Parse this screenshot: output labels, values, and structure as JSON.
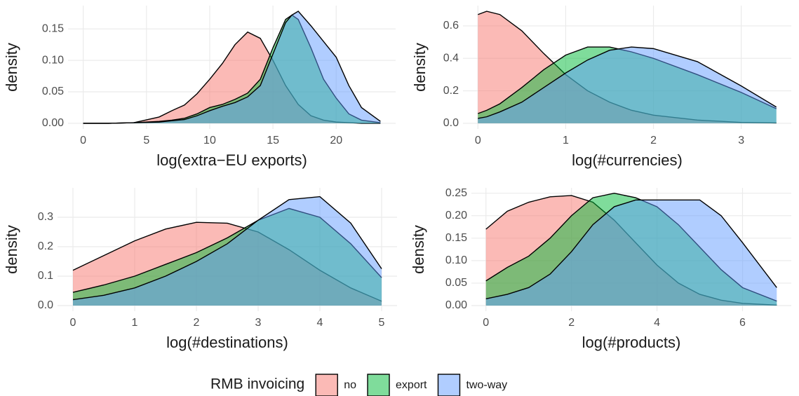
{
  "chart_data": [
    {
      "type": "area",
      "legend_title": "RMB invoicing",
      "xlabel": "log(extra−EU exports)",
      "ylabel": "density",
      "x": [
        0,
        2,
        4,
        6,
        7,
        8,
        9,
        10,
        11,
        12,
        13,
        14,
        15,
        16,
        16.5,
        17,
        18,
        19,
        20,
        21,
        22,
        23.5
      ],
      "series": [
        {
          "name": "no",
          "color": "#F8766D",
          "values": [
            0,
            0,
            0.001,
            0.01,
            0.02,
            0.029,
            0.047,
            0.07,
            0.095,
            0.125,
            0.145,
            0.135,
            0.1,
            0.06,
            0.045,
            0.03,
            0.012,
            0.005,
            0.002,
            0.001,
            0,
            0
          ]
        },
        {
          "name": "export",
          "color": "#00BA38",
          "values": [
            0,
            0,
            0.001,
            0.003,
            0.005,
            0.008,
            0.015,
            0.025,
            0.03,
            0.038,
            0.048,
            0.07,
            0.12,
            0.165,
            0.172,
            0.165,
            0.12,
            0.07,
            0.04,
            0.015,
            0.005,
            0.001
          ]
        },
        {
          "name": "two-way",
          "color": "#619CFF",
          "values": [
            0,
            0,
            0.001,
            0.002,
            0.004,
            0.006,
            0.012,
            0.02,
            0.027,
            0.033,
            0.042,
            0.06,
            0.11,
            0.16,
            0.172,
            0.178,
            0.155,
            0.13,
            0.105,
            0.06,
            0.025,
            0.003
          ]
        }
      ],
      "xlim": [
        -1.2,
        24.7
      ],
      "ylim": [
        -0.009,
        0.187
      ],
      "xticks": [
        0,
        5,
        10,
        15,
        20
      ],
      "yticks": [
        {
          "value": 0,
          "label": "0.00"
        },
        0.05,
        {
          "value": 0.1,
          "label": "0.10"
        },
        0.15
      ],
      "grid": true
    },
    {
      "type": "area",
      "xlabel": "log(#currencies)",
      "ylabel": "density",
      "x": [
        0,
        0.1,
        0.25,
        0.5,
        0.75,
        1,
        1.25,
        1.5,
        1.75,
        2,
        2.5,
        3,
        3.4
      ],
      "series": [
        {
          "name": "no",
          "color": "#F8766D",
          "values": [
            0.67,
            0.69,
            0.67,
            0.57,
            0.43,
            0.3,
            0.2,
            0.13,
            0.08,
            0.05,
            0.02,
            0.005,
            0.002
          ]
        },
        {
          "name": "export",
          "color": "#00BA38",
          "values": [
            0.06,
            0.08,
            0.12,
            0.22,
            0.33,
            0.42,
            0.47,
            0.47,
            0.44,
            0.4,
            0.3,
            0.19,
            0.09
          ]
        },
        {
          "name": "two-way",
          "color": "#619CFF",
          "values": [
            0.03,
            0.04,
            0.07,
            0.13,
            0.22,
            0.31,
            0.39,
            0.45,
            0.47,
            0.46,
            0.38,
            0.23,
            0.1
          ]
        }
      ],
      "xlim": [
        -0.17,
        3.57
      ],
      "ylim": [
        -0.035,
        0.725
      ],
      "xticks": [
        0,
        1,
        2,
        3
      ],
      "yticks": [
        {
          "value": 0,
          "label": "0.0"
        },
        0.2,
        0.4,
        0.6
      ],
      "grid": true
    },
    {
      "type": "area",
      "xlabel": "log(#destinations)",
      "ylabel": "density",
      "x": [
        0,
        0.5,
        1,
        1.5,
        2,
        2.5,
        3,
        3.5,
        4,
        4.5,
        5
      ],
      "series": [
        {
          "name": "no",
          "color": "#F8766D",
          "values": [
            0.12,
            0.17,
            0.22,
            0.26,
            0.283,
            0.28,
            0.25,
            0.19,
            0.12,
            0.06,
            0.015
          ]
        },
        {
          "name": "export",
          "color": "#00BA38",
          "values": [
            0.045,
            0.07,
            0.1,
            0.14,
            0.18,
            0.23,
            0.29,
            0.33,
            0.3,
            0.21,
            0.095
          ]
        },
        {
          "name": "two-way",
          "color": "#619CFF",
          "values": [
            0.02,
            0.035,
            0.06,
            0.1,
            0.15,
            0.21,
            0.29,
            0.36,
            0.37,
            0.28,
            0.125
          ]
        }
      ],
      "xlim": [
        -0.25,
        5.25
      ],
      "ylim": [
        -0.019,
        0.4
      ],
      "xticks": [
        0,
        1,
        2,
        3,
        4,
        5
      ],
      "yticks": [
        {
          "value": 0,
          "label": "0.0"
        },
        0.1,
        0.2,
        0.3
      ],
      "grid": true
    },
    {
      "type": "area",
      "xlabel": "log(#products)",
      "ylabel": "density",
      "x": [
        0,
        0.5,
        1,
        1.5,
        2,
        2.5,
        3,
        3.5,
        4,
        4.5,
        5,
        5.5,
        6,
        6.8
      ],
      "series": [
        {
          "name": "no",
          "color": "#F8766D",
          "values": [
            0.17,
            0.21,
            0.23,
            0.242,
            0.245,
            0.23,
            0.19,
            0.14,
            0.09,
            0.05,
            0.025,
            0.012,
            0.005,
            0.001
          ]
        },
        {
          "name": "export",
          "color": "#00BA38",
          "values": [
            0.055,
            0.085,
            0.11,
            0.15,
            0.2,
            0.24,
            0.25,
            0.24,
            0.22,
            0.18,
            0.13,
            0.08,
            0.04,
            0.01
          ]
        },
        {
          "name": "two-way",
          "color": "#619CFF",
          "values": [
            0.015,
            0.025,
            0.04,
            0.07,
            0.12,
            0.18,
            0.22,
            0.235,
            0.235,
            0.235,
            0.235,
            0.2,
            0.14,
            0.04
          ]
        }
      ],
      "xlim": [
        -0.34,
        7.14
      ],
      "ylim": [
        -0.0125,
        0.262
      ],
      "xticks": [
        0,
        2,
        4,
        6
      ],
      "yticks": [
        {
          "value": 0,
          "label": "0.00"
        },
        0.05,
        {
          "value": 0.1,
          "label": "0.10"
        },
        0.15,
        {
          "value": 0.2,
          "label": "0.20"
        },
        0.25
      ],
      "grid": true
    }
  ]
}
